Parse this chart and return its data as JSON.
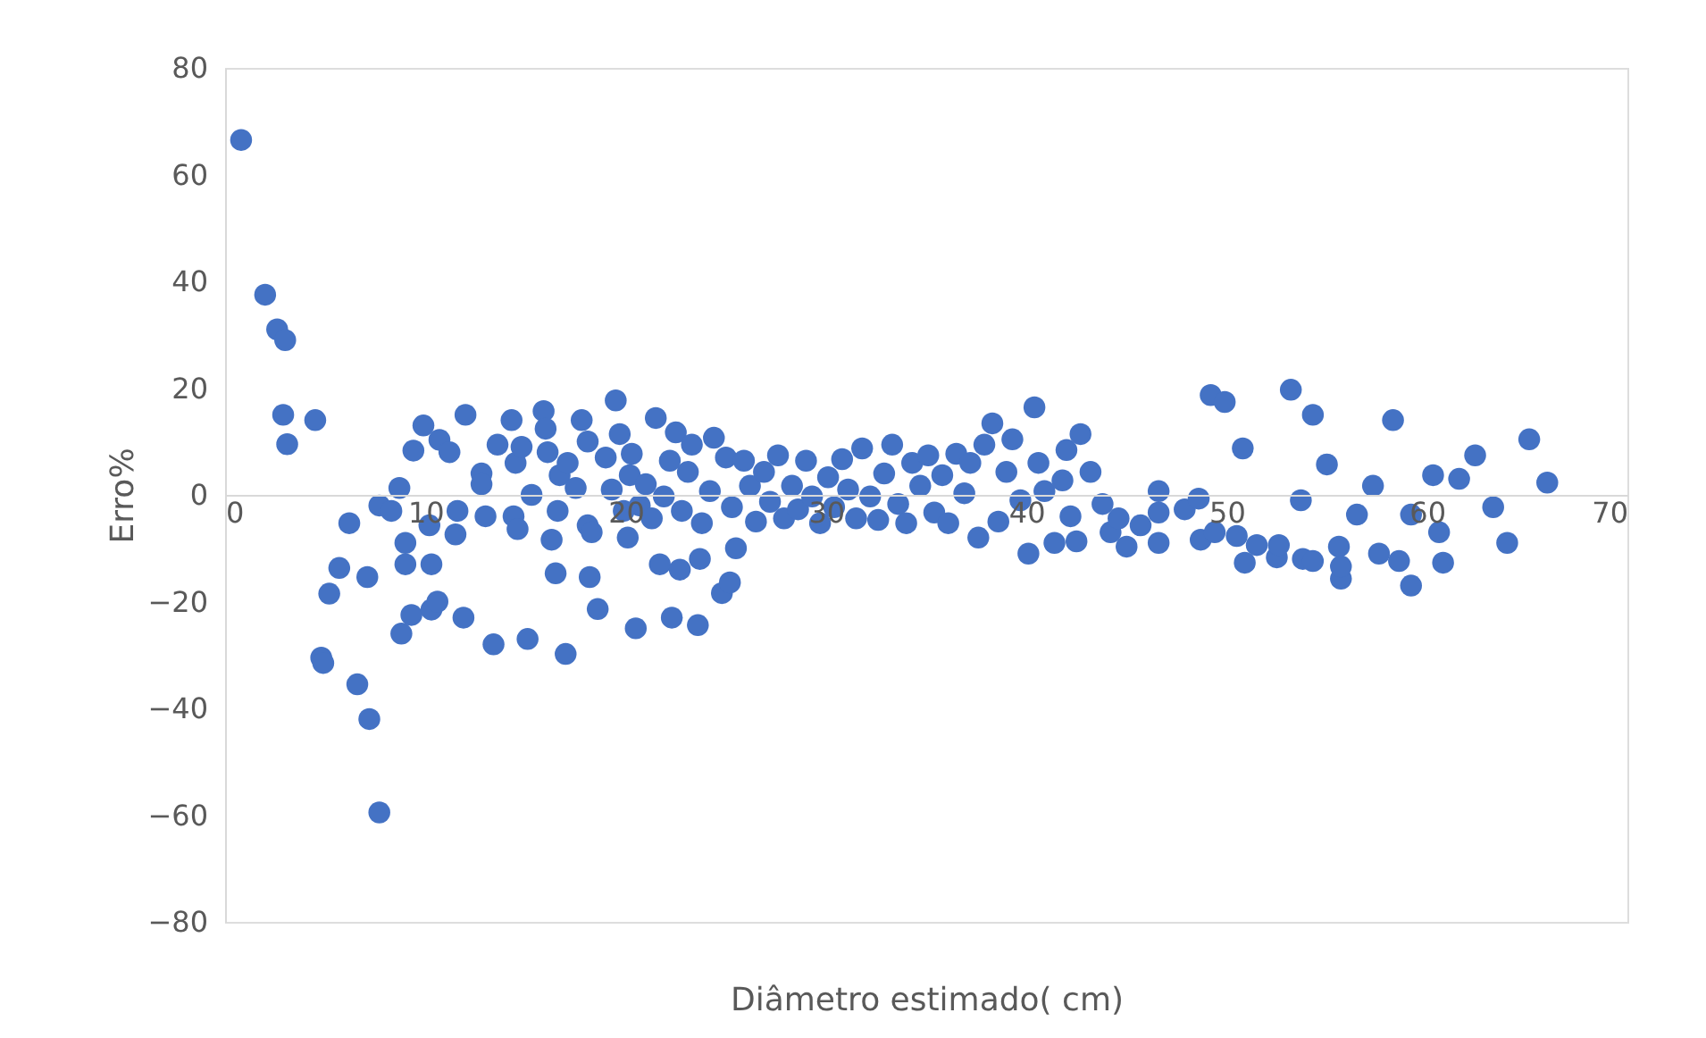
{
  "chart_data": {
    "type": "scatter",
    "xlabel": "Diâmetro estimado( cm)",
    "ylabel": "Erro%",
    "xlim": [
      0,
      70
    ],
    "xticks": [
      0,
      10,
      20,
      30,
      40,
      50,
      60,
      70
    ],
    "ylim": [
      -80,
      80
    ],
    "yticks": [
      -80,
      -60,
      -40,
      -20,
      0,
      20,
      40,
      60,
      80
    ],
    "grid": false,
    "legend": false,
    "marker": "circle",
    "series": [
      {
        "color": "#4472c4",
        "x": [
          0.8,
          2.0,
          2.6,
          3.0,
          2.9,
          3.1,
          4.5,
          4.8,
          4.9,
          5.2,
          5.7,
          6.2,
          6.6,
          7.1,
          7.2,
          7.7,
          7.7,
          8.3,
          8.7,
          9.0,
          8.8,
          9.3,
          9.0,
          9.4,
          9.9,
          10.2,
          10.3,
          10.3,
          10.6,
          10.7,
          11.2,
          11.6,
          11.5,
          11.9,
          12.0,
          12.8,
          12.8,
          13.0,
          13.4,
          13.6,
          14.3,
          14.4,
          14.6,
          14.5,
          14.8,
          15.1,
          15.3,
          15.9,
          16.0,
          16.1,
          16.3,
          16.5,
          16.6,
          16.7,
          17.0,
          17.1,
          17.5,
          17.8,
          18.1,
          18.1,
          18.2,
          18.3,
          18.6,
          19.0,
          19.3,
          19.5,
          19.7,
          19.9,
          20.1,
          20.2,
          20.3,
          20.5,
          20.7,
          21.0,
          21.3,
          21.5,
          21.7,
          21.9,
          22.2,
          22.3,
          22.5,
          22.7,
          22.8,
          23.1,
          23.3,
          23.6,
          23.7,
          23.8,
          24.2,
          24.4,
          24.8,
          25.0,
          25.2,
          25.3,
          25.5,
          25.9,
          26.2,
          26.5,
          26.9,
          27.2,
          27.6,
          27.9,
          28.3,
          28.6,
          29.0,
          29.3,
          29.7,
          30.1,
          30.4,
          30.8,
          31.1,
          31.5,
          31.8,
          32.2,
          32.6,
          32.9,
          33.3,
          33.6,
          34.0,
          34.3,
          34.7,
          35.1,
          35.4,
          35.8,
          36.1,
          36.5,
          36.9,
          37.2,
          37.6,
          37.9,
          38.3,
          38.6,
          39.0,
          39.3,
          39.7,
          40.1,
          40.4,
          40.6,
          40.9,
          41.4,
          41.8,
          42.0,
          42.2,
          42.5,
          42.7,
          43.2,
          43.8,
          44.2,
          44.6,
          45.0,
          45.7,
          46.6,
          46.6,
          46.6,
          47.9,
          48.6,
          48.7,
          49.2,
          49.4,
          49.9,
          50.5,
          50.8,
          50.9,
          51.5,
          52.5,
          52.6,
          53.2,
          53.7,
          53.8,
          54.3,
          54.3,
          55.0,
          55.6,
          55.7,
          55.7,
          56.5,
          57.3,
          57.6,
          58.3,
          58.6,
          59.2,
          59.2,
          60.3,
          60.6,
          60.8,
          61.6,
          62.4,
          63.3,
          64.0,
          65.1,
          66.0
        ],
        "values": [
          66.5,
          37.5,
          31,
          29,
          15,
          9.5,
          14,
          -30.5,
          -31.5,
          -18.5,
          -13.7,
          -5.3,
          -35.5,
          -15.4,
          -42,
          -59.5,
          -2,
          -3,
          1.3,
          -9,
          -26,
          -22.5,
          -13,
          8.3,
          13,
          -5.7,
          -13,
          -21.5,
          -20,
          10.3,
          8,
          -3,
          -7.4,
          -23,
          15,
          4,
          2,
          -4,
          -28,
          9.4,
          14,
          -4,
          -6.4,
          6,
          9,
          -27,
          0,
          15.7,
          12.4,
          8,
          -8.4,
          -14.7,
          -3,
          3.7,
          -29.8,
          6,
          1.3,
          14,
          10,
          -5.7,
          -15.4,
          -7,
          -21.4,
          7,
          1,
          17.7,
          11.4,
          -3,
          -8,
          3.7,
          7.7,
          -25,
          -2,
          2,
          -4.4,
          14.4,
          -13,
          -0.3,
          6.4,
          -23,
          11.7,
          -14,
          -3,
          4.3,
          9.4,
          -24.4,
          -12,
          -5.3,
          0.7,
          10.7,
          -18.4,
          7,
          -16.4,
          -2.3,
          -10,
          6.4,
          1.7,
          -5,
          4.3,
          -1.3,
          7.4,
          -4.4,
          1.7,
          -2.7,
          6.4,
          -0.3,
          -5.3,
          3.3,
          -2.3,
          6.7,
          1,
          -4.4,
          8.7,
          -0.3,
          -4.7,
          4,
          9.4,
          -1.7,
          -5.3,
          6,
          1.7,
          7.4,
          -3.3,
          3.7,
          -5.3,
          7.7,
          0.3,
          6,
          -8,
          9.4,
          13.4,
          -5,
          4.3,
          10.4,
          -1,
          -11,
          16.4,
          6,
          0.7,
          -9,
          2.7,
          8.4,
          -4,
          -8.7,
          11.4,
          4.3,
          -1.7,
          -7,
          -4.4,
          -9.7,
          -5.7,
          0.7,
          -9,
          -3.3,
          -2.7,
          -0.7,
          -8.4,
          18.7,
          -7,
          17.4,
          -7.7,
          8.7,
          -12.7,
          -9.4,
          -11.7,
          -9.4,
          19.7,
          -1,
          -12,
          15,
          -12.4,
          5.7,
          -9.7,
          -15.7,
          -13.4,
          -3.7,
          1.7,
          -11,
          14,
          -12.4,
          -3.7,
          -17,
          3.7,
          -7,
          -12.7,
          3,
          7.4,
          -2.3,
          -9,
          10.4,
          2.3
        ]
      }
    ]
  }
}
